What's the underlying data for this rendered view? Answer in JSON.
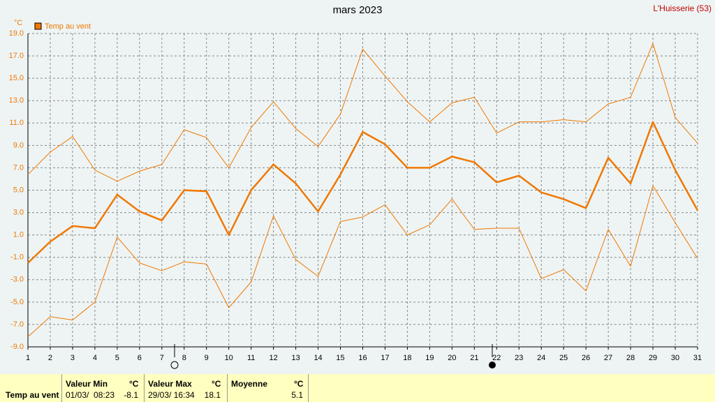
{
  "chart_data": {
    "type": "line",
    "title": "mars 2023",
    "station": "L'Huisserie (53)",
    "y_unit": "°C",
    "x": [
      1,
      2,
      3,
      4,
      5,
      6,
      7,
      8,
      9,
      10,
      11,
      12,
      13,
      14,
      15,
      16,
      17,
      18,
      19,
      20,
      21,
      22,
      23,
      24,
      25,
      26,
      27,
      28,
      29,
      30,
      31
    ],
    "xlim": [
      1,
      31
    ],
    "ylim": [
      -9,
      19
    ],
    "yticks": [
      {
        "value": 19,
        "label": "19.0"
      },
      {
        "value": 17,
        "label": "17.0"
      },
      {
        "value": 15,
        "label": "15.0"
      },
      {
        "value": 13,
        "label": "13.0"
      },
      {
        "value": 11,
        "label": "11.0"
      },
      {
        "value": 9,
        "label": "9.0"
      },
      {
        "value": 7,
        "label": "7.0"
      },
      {
        "value": 5,
        "label": "5.0"
      },
      {
        "value": 3,
        "label": "3.0"
      },
      {
        "value": 1,
        "label": "1.0"
      },
      {
        "value": -1,
        "label": "-1.0"
      },
      {
        "value": -3,
        "label": "-3.0"
      },
      {
        "value": -5,
        "label": "-5.0"
      },
      {
        "value": -7,
        "label": "-7.0"
      },
      {
        "value": -9,
        "label": "-9.0"
      }
    ],
    "grid": true,
    "series": [
      {
        "name": "Temp au vent",
        "color": "#f07800",
        "width": 2.5,
        "values": [
          -1.5,
          0.4,
          1.8,
          1.6,
          4.6,
          3.1,
          2.3,
          5.0,
          4.9,
          1.0,
          5.0,
          7.3,
          5.6,
          3.1,
          6.4,
          10.2,
          9.1,
          7.0,
          7.0,
          8.0,
          7.5,
          5.7,
          6.3,
          4.8,
          4.2,
          3.4,
          7.9,
          5.6,
          11.1,
          6.8,
          3.2
        ]
      },
      {
        "color": "#f07800",
        "width": 1,
        "values": [
          6.4,
          8.4,
          9.8,
          6.8,
          5.8,
          6.7,
          7.3,
          10.4,
          9.7,
          7.0,
          10.6,
          12.9,
          10.5,
          8.9,
          11.8,
          17.6,
          15.2,
          12.9,
          11.1,
          12.8,
          13.3,
          10.1,
          11.1,
          11.1,
          11.3,
          11.1,
          12.7,
          13.3,
          18.1,
          11.5,
          9.2
        ]
      },
      {
        "color": "#f07800",
        "width": 1,
        "values": [
          -8.1,
          -6.3,
          -6.6,
          -5.0,
          0.8,
          -1.5,
          -2.2,
          -1.4,
          -1.6,
          -5.5,
          -3.2,
          2.7,
          -1.2,
          -2.7,
          2.2,
          2.6,
          3.7,
          1.0,
          1.9,
          4.2,
          1.5,
          1.6,
          1.6,
          -2.9,
          -2.1,
          -4.0,
          1.5,
          -1.8,
          5.4,
          2.1,
          -1.1
        ]
      }
    ]
  },
  "stats": {
    "row_label": "Temp au vent",
    "blocks": [
      {
        "title": "Valeur Min",
        "unit": "°C",
        "when": "01/03/  08:23",
        "value": -8.1
      },
      {
        "title": "Valeur Max",
        "unit": "°C",
        "when": "29/03/ 16:34",
        "value": 18.1
      },
      {
        "title": "Moyenne",
        "unit": "°C",
        "value": 5.1
      }
    ]
  }
}
